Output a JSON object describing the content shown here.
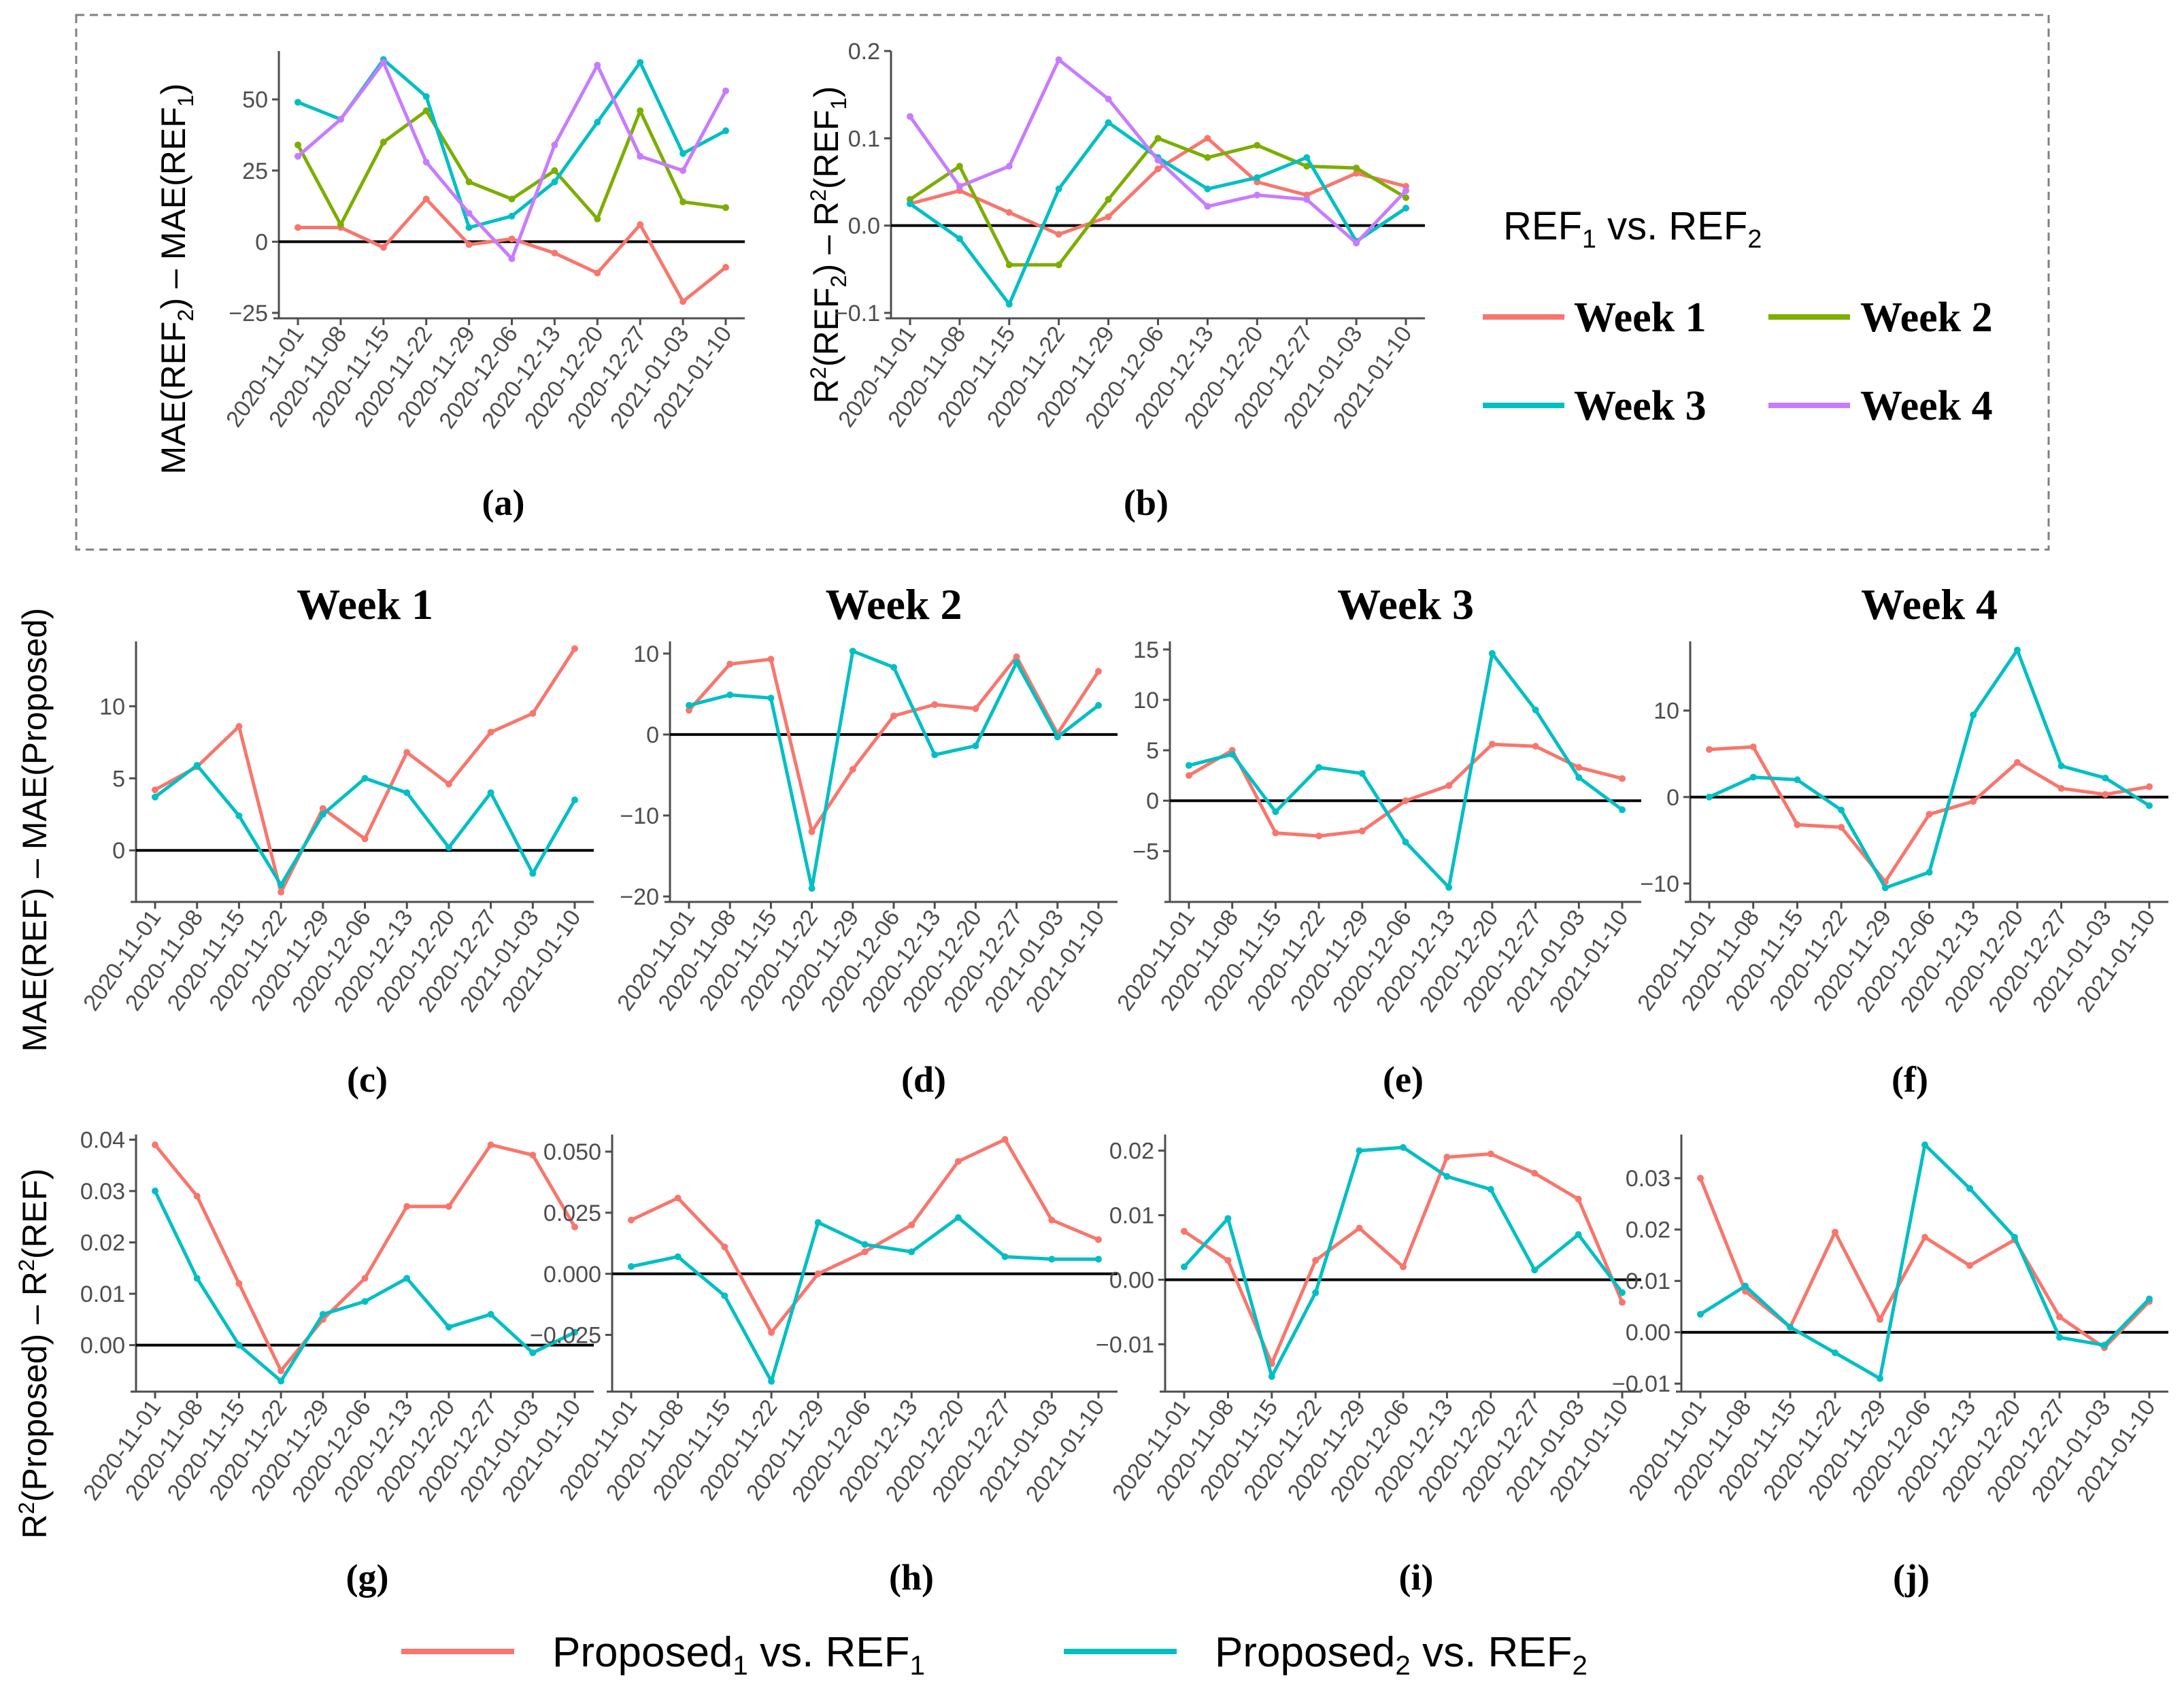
{
  "colors": {
    "week1": "#F8766D",
    "week2": "#7CAE00",
    "week3": "#00BFC4",
    "week4": "#C77CFF",
    "proposed1": "#F8766D",
    "proposed2": "#00BFC4",
    "axis": "#4d4d4d",
    "zero": "#000000"
  },
  "labels": {
    "ylabel_a": {
      "pre": "MAE(REF",
      "s1": "2",
      "mid": ") – MAE(REF",
      "s2": "1",
      "post": ")"
    },
    "ylabel_b": {
      "r1": "R",
      "p1": "2",
      "a": "(REF",
      "s1": "2",
      "b": ") – R",
      "p2": "2",
      "c": "(REF",
      "s2": "1",
      "d": ")"
    },
    "ylabel_row1": "MAE(REF) – MAE(Proposed)",
    "ylabel_row2": {
      "r": "R",
      "p": "2",
      "a": "(Proposed) – R",
      "p2": "2",
      "b": "(REF)"
    },
    "legend_top": {
      "title": {
        "a": "REF",
        "s1": "1",
        "b": " vs. REF",
        "s2": "2"
      },
      "items": [
        "Week 1",
        "Week 2",
        "Week 3",
        "Week 4"
      ]
    },
    "legend_bottom": [
      {
        "a": "Proposed",
        "s1": "1",
        "b": " vs. REF",
        "s2": "1"
      },
      {
        "a": "Proposed",
        "s1": "2",
        "b": " vs. REF",
        "s2": "2"
      }
    ]
  },
  "chart_data": [
    {
      "id": "a",
      "type": "line",
      "label": "(a)",
      "title": "",
      "categories": [
        "2020-11-01",
        "2020-11-08",
        "2020-11-15",
        "2020-11-22",
        "2020-11-29",
        "2020-12-06",
        "2020-12-13",
        "2020-12-20",
        "2020-12-27",
        "2021-01-03",
        "2021-01-10"
      ],
      "ylim": [
        -25,
        67
      ],
      "yticks": [
        -25,
        0,
        25,
        50
      ],
      "series": [
        {
          "name": "Week 1",
          "color_key": "week1",
          "values": [
            5,
            5,
            -2,
            15,
            -1,
            1,
            -4,
            -11,
            6,
            -21,
            -9
          ]
        },
        {
          "name": "Week 2",
          "color_key": "week2",
          "values": [
            34,
            6,
            35,
            46,
            21,
            15,
            25,
            8,
            46,
            14,
            12
          ]
        },
        {
          "name": "Week 3",
          "color_key": "week3",
          "values": [
            49,
            43,
            64,
            51,
            5,
            9,
            21,
            42,
            63,
            31,
            39
          ]
        },
        {
          "name": "Week 4",
          "color_key": "week4",
          "values": [
            30,
            43,
            63,
            28,
            10,
            -6,
            34,
            62,
            30,
            25,
            53
          ]
        }
      ]
    },
    {
      "id": "b",
      "type": "line",
      "label": "(b)",
      "title": "",
      "categories": [
        "2020-11-01",
        "2020-11-08",
        "2020-11-15",
        "2020-11-22",
        "2020-11-29",
        "2020-12-06",
        "2020-12-13",
        "2020-12-20",
        "2020-12-27",
        "2021-01-03",
        "2021-01-10"
      ],
      "ylim": [
        -0.1,
        0.2
      ],
      "yticks": [
        -0.1,
        0.0,
        0.1,
        0.2
      ],
      "tick_decimals": 1,
      "series": [
        {
          "name": "Week 1",
          "color_key": "week1",
          "values": [
            0.025,
            0.04,
            0.015,
            -0.01,
            0.01,
            0.065,
            0.1,
            0.05,
            0.035,
            0.06,
            0.045
          ]
        },
        {
          "name": "Week 2",
          "color_key": "week2",
          "values": [
            0.03,
            0.068,
            -0.045,
            -0.045,
            0.03,
            0.1,
            0.078,
            0.092,
            0.068,
            0.066,
            0.032
          ]
        },
        {
          "name": "Week 3",
          "color_key": "week3",
          "values": [
            0.025,
            -0.015,
            -0.09,
            0.042,
            0.118,
            0.078,
            0.042,
            0.055,
            0.078,
            -0.018,
            0.02
          ]
        },
        {
          "name": "Week 4",
          "color_key": "week4",
          "values": [
            0.125,
            0.045,
            0.068,
            0.19,
            0.145,
            0.075,
            0.022,
            0.035,
            0.03,
            -0.02,
            0.04
          ]
        }
      ]
    },
    {
      "id": "c",
      "type": "line",
      "label": "(c)",
      "title": "Week 1",
      "categories": [
        "2020-11-01",
        "2020-11-08",
        "2020-11-15",
        "2020-11-22",
        "2020-11-29",
        "2020-12-06",
        "2020-12-13",
        "2020-12-20",
        "2020-12-27",
        "2021-01-03",
        "2021-01-10"
      ],
      "ylim": [
        -3.2,
        14.5
      ],
      "yticks": [
        0,
        5,
        10
      ],
      "series": [
        {
          "name": "Proposed1 vs. REF1",
          "color_key": "proposed1",
          "values": [
            4.2,
            5.8,
            8.6,
            -2.9,
            2.9,
            0.8,
            6.8,
            4.6,
            8.2,
            9.5,
            14
          ]
        },
        {
          "name": "Proposed2 vs. REF2",
          "color_key": "proposed2",
          "values": [
            3.7,
            5.9,
            2.4,
            -2.4,
            2.5,
            5.0,
            4.0,
            0.2,
            4.0,
            -1.6,
            3.5
          ]
        }
      ]
    },
    {
      "id": "d",
      "type": "line",
      "label": "(d)",
      "title": "Week 2",
      "categories": [
        "2020-11-01",
        "2020-11-08",
        "2020-11-15",
        "2020-11-22",
        "2020-11-29",
        "2020-12-06",
        "2020-12-13",
        "2020-12-20",
        "2020-12-27",
        "2021-01-03",
        "2021-01-10"
      ],
      "ylim": [
        -20,
        11.5
      ],
      "yticks": [
        -20,
        -10,
        0,
        10
      ],
      "series": [
        {
          "name": "Proposed1 vs. REF1",
          "color_key": "proposed1",
          "values": [
            3,
            8.7,
            9.3,
            -12,
            -4.3,
            2.3,
            3.7,
            3.2,
            9.6,
            0.1,
            7.8
          ]
        },
        {
          "name": "Proposed2 vs. REF2",
          "color_key": "proposed2",
          "values": [
            3.6,
            4.9,
            4.5,
            -19,
            10.3,
            8.3,
            -2.5,
            -1.4,
            8.9,
            -0.3,
            3.6
          ]
        }
      ]
    },
    {
      "id": "e",
      "type": "line",
      "label": "(e)",
      "title": "Week 3",
      "categories": [
        "2020-11-01",
        "2020-11-08",
        "2020-11-15",
        "2020-11-22",
        "2020-11-29",
        "2020-12-06",
        "2020-12-13",
        "2020-12-20",
        "2020-12-27",
        "2021-01-03",
        "2021-01-10"
      ],
      "ylim": [
        -9.5,
        15.8
      ],
      "yticks": [
        -5,
        0,
        5,
        10,
        15
      ],
      "series": [
        {
          "name": "Proposed1 vs. REF1",
          "color_key": "proposed1",
          "values": [
            2.5,
            5.0,
            -3.2,
            -3.5,
            -3.0,
            0.0,
            1.5,
            5.6,
            5.4,
            3.3,
            2.2
          ]
        },
        {
          "name": "Proposed2 vs. REF2",
          "color_key": "proposed2",
          "values": [
            3.5,
            4.6,
            -1.1,
            3.3,
            2.7,
            -4.1,
            -8.6,
            14.6,
            9.0,
            2.3,
            -0.9
          ]
        }
      ]
    },
    {
      "id": "f",
      "type": "line",
      "label": "(f)",
      "title": "Week 4",
      "categories": [
        "2020-11-01",
        "2020-11-08",
        "2020-11-15",
        "2020-11-22",
        "2020-11-29",
        "2020-12-06",
        "2020-12-13",
        "2020-12-20",
        "2020-12-27",
        "2021-01-03",
        "2021-01-10"
      ],
      "ylim": [
        -11.5,
        18
      ],
      "yticks": [
        -10,
        0,
        10
      ],
      "series": [
        {
          "name": "Proposed1 vs. REF1",
          "color_key": "proposed1",
          "values": [
            5.5,
            5.8,
            -3.2,
            -3.5,
            -9.8,
            -2.0,
            -0.5,
            4.0,
            1.0,
            0.3,
            1.2
          ]
        },
        {
          "name": "Proposed2 vs. REF2",
          "color_key": "proposed2",
          "values": [
            0.0,
            2.3,
            2.0,
            -1.5,
            -10.5,
            -8.7,
            9.5,
            17.0,
            3.6,
            2.2,
            -1.0
          ]
        }
      ]
    },
    {
      "id": "g",
      "type": "line",
      "label": "(g)",
      "title": "",
      "categories": [
        "2020-11-01",
        "2020-11-08",
        "2020-11-15",
        "2020-11-22",
        "2020-11-29",
        "2020-12-06",
        "2020-12-13",
        "2020-12-20",
        "2020-12-27",
        "2021-01-03",
        "2021-01-10"
      ],
      "ylim": [
        -0.008,
        0.041
      ],
      "yticks": [
        0.0,
        0.01,
        0.02,
        0.03,
        0.04
      ],
      "tick_decimals": 2,
      "series": [
        {
          "name": "Proposed1 vs. REF1",
          "color_key": "proposed1",
          "values": [
            0.039,
            0.029,
            0.012,
            -0.005,
            0.005,
            0.013,
            0.027,
            0.027,
            0.039,
            0.037,
            0.023
          ]
        },
        {
          "name": "Proposed2 vs. REF2",
          "color_key": "proposed2",
          "values": [
            0.03,
            0.013,
            0.0,
            -0.007,
            0.006,
            0.0085,
            0.013,
            0.0035,
            0.006,
            -0.0015,
            0.0025
          ]
        }
      ]
    },
    {
      "id": "h",
      "type": "line",
      "label": "(h)",
      "title": "",
      "categories": [
        "2020-11-01",
        "2020-11-08",
        "2020-11-15",
        "2020-11-22",
        "2020-11-29",
        "2020-12-06",
        "2020-12-13",
        "2020-12-20",
        "2020-12-27",
        "2021-01-03",
        "2021-01-10"
      ],
      "ylim": [
        -0.046,
        0.057
      ],
      "yticks": [
        -0.025,
        0.0,
        0.025,
        0.05
      ],
      "tick_decimals": 3,
      "series": [
        {
          "name": "Proposed1 vs. REF1",
          "color_key": "proposed1",
          "values": [
            0.022,
            0.031,
            0.011,
            -0.024,
            0.0,
            0.009,
            0.02,
            0.046,
            0.055,
            0.022,
            0.014
          ]
        },
        {
          "name": "Proposed2 vs. REF2",
          "color_key": "proposed2",
          "values": [
            0.003,
            0.007,
            -0.009,
            -0.044,
            0.021,
            0.012,
            0.009,
            0.023,
            0.007,
            0.006,
            0.006
          ]
        }
      ]
    },
    {
      "id": "i",
      "type": "line",
      "label": "(i)",
      "title": "",
      "categories": [
        "2020-11-01",
        "2020-11-08",
        "2020-11-15",
        "2020-11-22",
        "2020-11-29",
        "2020-12-06",
        "2020-12-13",
        "2020-12-20",
        "2020-12-27",
        "2021-01-03",
        "2021-01-10"
      ],
      "ylim": [
        -0.0165,
        0.0225
      ],
      "yticks": [
        -0.01,
        0.0,
        0.01,
        0.02
      ],
      "tick_decimals": 2,
      "series": [
        {
          "name": "Proposed1 vs. REF1",
          "color_key": "proposed1",
          "values": [
            0.0075,
            0.003,
            -0.013,
            0.003,
            0.008,
            0.002,
            0.019,
            0.0195,
            0.0165,
            0.0125,
            -0.0035
          ]
        },
        {
          "name": "Proposed2 vs. REF2",
          "color_key": "proposed2",
          "values": [
            0.002,
            0.0095,
            -0.015,
            -0.002,
            0.02,
            0.0205,
            0.016,
            0.014,
            0.0015,
            0.007,
            -0.002
          ]
        }
      ]
    },
    {
      "id": "j",
      "type": "line",
      "label": "(j)",
      "title": "",
      "categories": [
        "2020-11-01",
        "2020-11-08",
        "2020-11-15",
        "2020-11-22",
        "2020-11-29",
        "2020-12-06",
        "2020-12-13",
        "2020-12-20",
        "2020-12-27",
        "2021-01-03",
        "2021-01-10"
      ],
      "ylim": [
        -0.0105,
        0.0385
      ],
      "yticks": [
        -0.01,
        0.0,
        0.01,
        0.02,
        0.03
      ],
      "tick_decimals": 2,
      "series": [
        {
          "name": "Proposed1 vs. REF1",
          "color_key": "proposed1",
          "values": [
            0.03,
            0.008,
            0.001,
            0.0195,
            0.0025,
            0.0185,
            0.013,
            0.018,
            0.003,
            -0.003,
            0.006
          ]
        },
        {
          "name": "Proposed2 vs. REF2",
          "color_key": "proposed2",
          "values": [
            0.0035,
            0.009,
            0.001,
            -0.004,
            -0.009,
            0.0365,
            0.028,
            0.0185,
            -0.001,
            -0.0025,
            0.0065
          ]
        }
      ]
    }
  ]
}
